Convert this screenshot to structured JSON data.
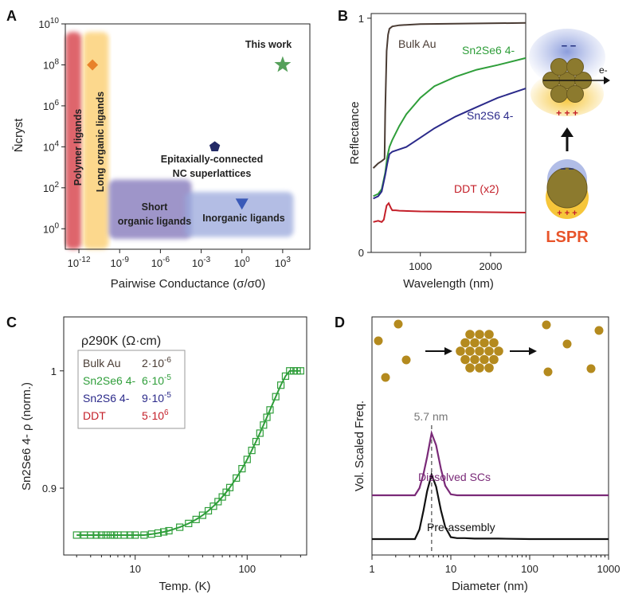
{
  "chart_data": [
    {
      "panel": "A",
      "type": "scatter",
      "xlabel": "Pairwise Conductance (σ/σ0)",
      "ylabel": "N̄cryst",
      "x_scale": "log10",
      "y_scale": "log10",
      "xlim_log10": [
        -13,
        5
      ],
      "ylim_log10": [
        -1,
        10
      ],
      "x_ticks": [
        {
          "log": -12,
          "label": "10^-12"
        },
        {
          "log": -9,
          "label": "10^-9"
        },
        {
          "log": -6,
          "label": "10^-6"
        },
        {
          "log": -3,
          "label": "10^-3"
        },
        {
          "log": 0,
          "label": "10^0"
        },
        {
          "log": 3,
          "label": "10^3"
        }
      ],
      "y_ticks": [
        {
          "log": 0,
          "label": "10^0"
        },
        {
          "log": 2,
          "label": "10^2"
        },
        {
          "log": 4,
          "label": "10^4"
        },
        {
          "log": 6,
          "label": "10^6"
        },
        {
          "log": 8,
          "label": "10^8"
        },
        {
          "log": 10,
          "label": "10^10"
        }
      ],
      "regions": [
        {
          "name": "Polymer ligands",
          "x_log_range": [
            -13,
            -11.8
          ],
          "y_log_range": [
            -1,
            9.6
          ],
          "color": "#d94c52"
        },
        {
          "name": "Long organic ligands",
          "x_log_range": [
            -11.7,
            -9.8
          ],
          "y_log_range": [
            -1,
            9.6
          ],
          "color": "#fcd27a"
        },
        {
          "name": "Short organic ligands",
          "x_log_range": [
            -9.8,
            -3.7
          ],
          "y_log_range": [
            -0.5,
            2.4
          ],
          "color": "#7e72b8"
        },
        {
          "name": "Inorganic ligands",
          "x_log_range": [
            -4.2,
            3.8
          ],
          "y_log_range": [
            -0.4,
            1.8
          ],
          "color": "#9aa8dc"
        }
      ],
      "points": [
        {
          "name": "Long organic ligands",
          "x_log": -11,
          "y_log": 8,
          "marker": "diamond",
          "color": "#e8812a"
        },
        {
          "name": "Epitaxially-connected NC superlattices",
          "x_log": -2,
          "y_log": 4,
          "marker": "pentagon",
          "color": "#232a66"
        },
        {
          "name": "Inorganic ligands",
          "x_log": 0,
          "y_log": 1.2,
          "marker": "triangle-down",
          "color": "#3a5ab8"
        },
        {
          "name": "This work",
          "x_log": 3,
          "y_log": 8,
          "marker": "star",
          "color": "#55a05a"
        }
      ],
      "annotations": [
        "This work",
        "Epitaxially-connected",
        "NC superlattices",
        "Short",
        "organic ligands",
        "Inorganic ligands",
        "Polymer ligands",
        "Long organic ligands"
      ]
    },
    {
      "panel": "B",
      "type": "line",
      "xlabel": "Wavelength (nm)",
      "ylabel": "Reflectance",
      "xlim": [
        300,
        2500
      ],
      "ylim": [
        0,
        1.02
      ],
      "x_ticks": [
        1000,
        2000
      ],
      "y_ticks": [
        0,
        1
      ],
      "series": [
        {
          "name": "Bulk Au",
          "color": "#4a3c34",
          "x": [
            330,
            400,
            450,
            490,
            500,
            520,
            540,
            560,
            600,
            700,
            1000,
            2500
          ],
          "y": [
            0.36,
            0.38,
            0.39,
            0.4,
            0.6,
            0.86,
            0.93,
            0.955,
            0.965,
            0.97,
            0.975,
            0.98
          ]
        },
        {
          "name": "Sn2Se6 4-",
          "color": "#2f9e3a",
          "x": [
            330,
            400,
            450,
            500,
            530,
            560,
            600,
            700,
            800,
            1000,
            1200,
            1500,
            1800,
            2100,
            2500
          ],
          "y": [
            0.24,
            0.25,
            0.27,
            0.34,
            0.41,
            0.45,
            0.48,
            0.54,
            0.59,
            0.66,
            0.71,
            0.75,
            0.78,
            0.8,
            0.83
          ]
        },
        {
          "name": "Sn2S6 4-",
          "color": "#2b2a8a",
          "x": [
            330,
            400,
            450,
            500,
            530,
            560,
            600,
            700,
            800,
            1000,
            1200,
            1500,
            1800,
            2100,
            2500
          ],
          "y": [
            0.23,
            0.24,
            0.26,
            0.33,
            0.38,
            0.42,
            0.43,
            0.44,
            0.45,
            0.49,
            0.53,
            0.58,
            0.62,
            0.66,
            0.7
          ]
        },
        {
          "name": "DDT (x2)",
          "color": "#c4202a",
          "x": [
            330,
            400,
            450,
            480,
            500,
            520,
            550,
            580,
            600,
            650,
            700,
            1000,
            2500
          ],
          "y": [
            0.13,
            0.135,
            0.13,
            0.14,
            0.17,
            0.2,
            0.21,
            0.19,
            0.18,
            0.18,
            0.178,
            0.175,
            0.17
          ]
        }
      ],
      "labels": [
        "Bulk Au",
        "Sn2Se6 4-",
        "Sn2S6 4-",
        "DDT (x2)"
      ],
      "inset_labels": {
        "electron": "e-",
        "charges_minus": "− −",
        "charges_plus": "+ + +",
        "lspr": "LSPR"
      }
    },
    {
      "panel": "C",
      "type": "line",
      "xlabel": "Temp. (K)",
      "ylabel": "Sn2Se6 4- ρ (norm.)",
      "x_scale": "log10",
      "xlim": [
        2.3,
        340
      ],
      "ylim": [
        0.843,
        1.046
      ],
      "x_ticks": [
        10,
        100
      ],
      "y_ticks": [
        0.9,
        1
      ],
      "series": [
        {
          "name": "Sn2Se6 4- data",
          "marker": "square-open",
          "color": "#2f9e3a",
          "x": [
            3,
            3.5,
            4,
            4.5,
            5,
            5.5,
            6,
            6.5,
            7,
            8,
            9,
            10,
            12,
            14,
            16,
            18,
            20,
            25,
            30,
            35,
            40,
            45,
            50,
            55,
            60,
            65,
            70,
            80,
            90,
            100,
            110,
            120,
            130,
            140,
            150,
            160,
            180,
            200,
            220,
            240,
            260,
            280,
            300
          ],
          "y": [
            0.86,
            0.86,
            0.86,
            0.86,
            0.86,
            0.86,
            0.86,
            0.86,
            0.86,
            0.86,
            0.86,
            0.86,
            0.86,
            0.8608,
            0.8617,
            0.8627,
            0.8637,
            0.8667,
            0.8699,
            0.8733,
            0.8769,
            0.8807,
            0.8846,
            0.8885,
            0.8925,
            0.8965,
            0.9005,
            0.9086,
            0.9166,
            0.9245,
            0.9322,
            0.9397,
            0.9469,
            0.9538,
            0.9604,
            0.9667,
            0.978,
            0.9878,
            0.9955,
            1.0,
            1.0,
            1.0,
            1.0
          ]
        }
      ],
      "fit_line": {
        "color": "#2f9e3a"
      },
      "legend": {
        "title": "ρ290K (Ω·cm)",
        "entries": [
          {
            "label": "Bulk Au",
            "value": "2·10^-6",
            "color": "#4a3c34"
          },
          {
            "label": "Sn2Se6 4-",
            "value": "6·10^-5",
            "color": "#2f9e3a"
          },
          {
            "label": "Sn2S6 4-",
            "value": "9·10^-5",
            "color": "#2b2a8a"
          },
          {
            "label": "DDT",
            "value": "5·10^6",
            "color": "#c4202a"
          }
        ]
      }
    },
    {
      "panel": "D",
      "type": "line",
      "xlabel": "Diameter (nm)",
      "ylabel": "Vol. Scaled Freq.",
      "x_scale": "log10",
      "xlim": [
        1,
        1000
      ],
      "x_ticks": [
        1,
        10,
        100,
        1000
      ],
      "peak_annotation": {
        "label": "5.7 nm",
        "x": 5.7
      },
      "series": [
        {
          "name": "Dissolved SCs",
          "color": "#7a2a78",
          "offset": 1.0,
          "x": [
            1,
            2,
            3,
            3.5,
            4,
            4.5,
            5,
            5.7,
            6.5,
            7.5,
            8.5,
            10,
            12,
            15,
            20,
            40,
            100,
            1000
          ],
          "y": [
            0,
            0,
            0,
            0.0,
            0.15,
            0.45,
            0.8,
            1.3,
            1.05,
            0.55,
            0.2,
            0.02,
            0.0,
            0.0,
            0.0,
            0.0,
            0.0,
            0.0
          ]
        },
        {
          "name": "Pre-assembly",
          "color": "#111111",
          "offset": 0.0,
          "x": [
            1,
            2,
            3,
            3.5,
            4,
            4.5,
            5,
            5.7,
            6.5,
            7.5,
            8.5,
            10,
            12,
            15,
            20,
            40,
            100,
            1000
          ],
          "y": [
            0,
            0,
            0,
            0.0,
            0.2,
            0.6,
            1.0,
            1.35,
            1.1,
            0.6,
            0.25,
            0.04,
            0.02,
            0.02,
            0.01,
            0.01,
            0.0,
            0.0
          ]
        }
      ]
    }
  ],
  "panel_letters": [
    "A",
    "B",
    "C",
    "D"
  ],
  "colors": {
    "gold": "#b48a1e",
    "lspr": "#e8542a"
  }
}
